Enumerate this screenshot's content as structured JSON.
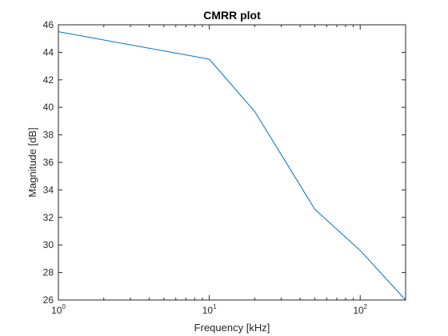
{
  "chart_data": {
    "type": "line",
    "title": "CMRR plot",
    "xlabel": "Frequency [kHz]",
    "ylabel": "Magnitude [dB]",
    "x_scale": "log",
    "xlim": [
      1,
      200
    ],
    "ylim": [
      26,
      46
    ],
    "x_ticks": [
      {
        "value": 1,
        "base": "10",
        "exp": "0"
      },
      {
        "value": 10,
        "base": "10",
        "exp": "1"
      },
      {
        "value": 100,
        "base": "10",
        "exp": "2"
      }
    ],
    "y_ticks": [
      26,
      28,
      30,
      32,
      34,
      36,
      38,
      40,
      42,
      44,
      46
    ],
    "grid": false,
    "box": true,
    "series": [
      {
        "color": "#0072BD",
        "x": [
          1,
          10,
          20,
          50,
          100,
          200
        ],
        "y": [
          45.5,
          43.5,
          39.7,
          32.6,
          29.6,
          26.0
        ]
      }
    ]
  }
}
